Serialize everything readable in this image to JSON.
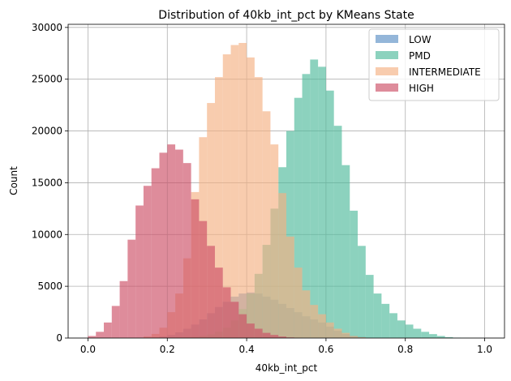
{
  "chart_data": {
    "type": "bar",
    "title": "Distribution of 40kb_int_pct by KMeans State",
    "xlabel": "40kb_int_pct",
    "ylabel": "Count",
    "xlim": [
      -0.05,
      1.05
    ],
    "ylim": [
      0,
      30300
    ],
    "xticks": [
      0.0,
      0.2,
      0.4,
      0.6,
      0.8,
      1.0
    ],
    "xtick_labels": [
      "0.0",
      "0.2",
      "0.4",
      "0.6",
      "0.8",
      "1.0"
    ],
    "yticks": [
      0,
      5000,
      10000,
      15000,
      20000,
      25000,
      30000
    ],
    "ytick_labels": [
      "0",
      "5000",
      "10000",
      "15000",
      "20000",
      "25000",
      "30000"
    ],
    "grid": true,
    "legend_position": "top-right",
    "bin_width": 0.02,
    "series": [
      {
        "name": "LOW",
        "color": "#5b8fc5",
        "opacity": 0.65,
        "x": [
          0.16,
          0.18,
          0.2,
          0.22,
          0.24,
          0.26,
          0.28,
          0.3,
          0.32,
          0.34,
          0.36,
          0.38,
          0.4,
          0.42,
          0.44,
          0.46,
          0.48,
          0.5,
          0.52,
          0.54,
          0.56,
          0.58,
          0.6,
          0.62,
          0.64,
          0.66,
          0.68
        ],
        "values": [
          50,
          150,
          300,
          550,
          900,
          1300,
          1800,
          2400,
          3000,
          3500,
          4000,
          4300,
          4400,
          4300,
          4000,
          3700,
          3300,
          2900,
          2500,
          2100,
          1800,
          1500,
          1100,
          700,
          400,
          200,
          100
        ]
      },
      {
        "name": "PMD",
        "color": "#4fba9b",
        "opacity": 0.65,
        "x": [
          0.22,
          0.24,
          0.26,
          0.28,
          0.3,
          0.32,
          0.34,
          0.36,
          0.38,
          0.4,
          0.42,
          0.44,
          0.46,
          0.48,
          0.5,
          0.52,
          0.54,
          0.56,
          0.58,
          0.6,
          0.62,
          0.64,
          0.66,
          0.68,
          0.7,
          0.72,
          0.74,
          0.76,
          0.78,
          0.8,
          0.82,
          0.84,
          0.86,
          0.88,
          0.9,
          0.92,
          0.94,
          0.96,
          0.98
        ],
        "values": [
          20,
          50,
          100,
          200,
          350,
          600,
          1000,
          1700,
          2800,
          4300,
          6200,
          9000,
          12500,
          16500,
          20000,
          23200,
          25500,
          26900,
          26200,
          23900,
          20500,
          16700,
          12300,
          8900,
          6100,
          4300,
          3300,
          2400,
          1700,
          1300,
          900,
          600,
          380,
          200,
          90,
          40,
          20,
          10,
          5
        ]
      },
      {
        "name": "INTERMEDIATE",
        "color": "#f5b183",
        "opacity": 0.65,
        "x": [
          0.14,
          0.16,
          0.18,
          0.2,
          0.22,
          0.24,
          0.26,
          0.28,
          0.3,
          0.32,
          0.34,
          0.36,
          0.38,
          0.4,
          0.42,
          0.44,
          0.46,
          0.48,
          0.5,
          0.52,
          0.54,
          0.56,
          0.58,
          0.6,
          0.62,
          0.64,
          0.66,
          0.68
        ],
        "values": [
          150,
          400,
          1000,
          2500,
          4300,
          7700,
          14100,
          19400,
          22700,
          25200,
          27400,
          28300,
          28500,
          27100,
          25200,
          21900,
          18700,
          14000,
          9800,
          6800,
          4600,
          3200,
          2300,
          1500,
          900,
          500,
          200,
          80
        ]
      },
      {
        "name": "HIGH",
        "color": "#cc4f66",
        "opacity": 0.65,
        "x": [
          0.0,
          0.02,
          0.04,
          0.06,
          0.08,
          0.1,
          0.12,
          0.14,
          0.16,
          0.18,
          0.2,
          0.22,
          0.24,
          0.26,
          0.28,
          0.3,
          0.32,
          0.34,
          0.36,
          0.38,
          0.4,
          0.42,
          0.44,
          0.46,
          0.48,
          0.5,
          0.52
        ],
        "values": [
          200,
          600,
          1500,
          3100,
          5500,
          9500,
          12800,
          14700,
          16400,
          17900,
          18700,
          18200,
          16900,
          13400,
          11300,
          8900,
          6800,
          4900,
          3500,
          2300,
          1400,
          900,
          500,
          300,
          150,
          60,
          20
        ]
      }
    ]
  }
}
